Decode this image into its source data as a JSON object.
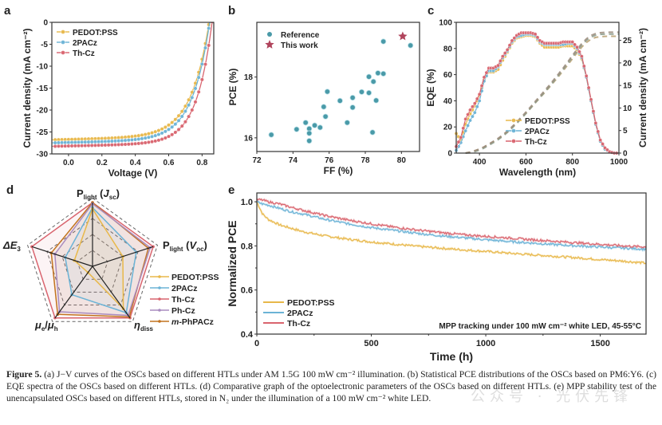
{
  "chart_data": [
    {
      "id": "a",
      "panel_label": "a",
      "type": "line",
      "title": "",
      "xlabel": "Voltage (V)",
      "ylabel": "Current density (mA cm⁻²)",
      "xlim": [
        -0.1,
        0.87
      ],
      "ylim": [
        -30,
        0
      ],
      "xticks": [
        0.0,
        0.2,
        0.4,
        0.6,
        0.8
      ],
      "xtick_labels": [
        "0.0",
        "0.2",
        "0.4",
        "0.6",
        "0.8"
      ],
      "yticks": [
        0,
        -5,
        -10,
        -15,
        -20,
        -25,
        -30
      ],
      "ytick_labels": [
        "0",
        "-5",
        "-10",
        "-15",
        "-20",
        "-25",
        "-30"
      ],
      "legend_position": "top-left",
      "series": [
        {
          "name": "PEDOT:PSS",
          "color": "#e8b84a",
          "jsc": -26.7,
          "voc": 0.845,
          "n": 4.2
        },
        {
          "name": "2PACz",
          "color": "#6bb3d6",
          "jsc": -27.4,
          "voc": 0.848,
          "n": 4.0
        },
        {
          "name": "Th-Cz",
          "color": "#d9646e",
          "jsc": -28.2,
          "voc": 0.862,
          "n": 3.6
        }
      ]
    },
    {
      "id": "b",
      "panel_label": "b",
      "type": "scatter",
      "xlabel": "FF (%)",
      "ylabel": "PCE (%)",
      "xlim": [
        72,
        81
      ],
      "ylim": [
        15.55,
        19.8
      ],
      "xticks": [
        72,
        74,
        76,
        78,
        80
      ],
      "xtick_labels": [
        "72",
        "74",
        "76",
        "78",
        "80"
      ],
      "yticks": [
        16,
        18
      ],
      "ytick_labels": [
        "16",
        "18"
      ],
      "legend_position": "top-left",
      "series": [
        {
          "name": "Reference",
          "color": "#4a9aa8",
          "marker": "circle",
          "points": [
            [
              72.8,
              16.1
            ],
            [
              74.2,
              16.28
            ],
            [
              74.7,
              16.5
            ],
            [
              74.9,
              16.3
            ],
            [
              74.9,
              16.15
            ],
            [
              74.9,
              15.9
            ],
            [
              75.2,
              16.41
            ],
            [
              75.5,
              16.34
            ],
            [
              75.8,
              16.7
            ],
            [
              75.7,
              17.02
            ],
            [
              75.9,
              17.52
            ],
            [
              76.6,
              17.22
            ],
            [
              77.0,
              16.5
            ],
            [
              77.3,
              17.0
            ],
            [
              77.3,
              17.32
            ],
            [
              77.8,
              17.51
            ],
            [
              78.2,
              18.01
            ],
            [
              78.2,
              17.48
            ],
            [
              78.45,
              17.85
            ],
            [
              78.6,
              17.23
            ],
            [
              78.4,
              16.18
            ],
            [
              78.7,
              18.13
            ],
            [
              79.0,
              18.11
            ],
            [
              79.0,
              19.17
            ],
            [
              80.5,
              19.04
            ]
          ]
        },
        {
          "name": "This work",
          "color": "#b0445c",
          "marker": "star",
          "points": [
            [
              80.07,
              19.34
            ]
          ]
        }
      ]
    },
    {
      "id": "c",
      "panel_label": "c",
      "type": "line",
      "xlabel": "Wavelength (nm)",
      "ylabel": "EQE (%)",
      "y2label": "Current density (mA cm⁻²)",
      "xlim": [
        300,
        1000
      ],
      "ylim": [
        0,
        100
      ],
      "y2lim": [
        0,
        29
      ],
      "xticks": [
        400,
        600,
        800,
        1000
      ],
      "xtick_labels": [
        "400",
        "600",
        "800",
        "1000"
      ],
      "yticks": [
        0,
        20,
        40,
        60,
        80,
        100
      ],
      "ytick_labels": [
        "0",
        "20",
        "40",
        "60",
        "80",
        "100"
      ],
      "y2ticks": [
        0,
        5,
        10,
        15,
        20,
        25
      ],
      "y2tick_labels": [
        "0",
        "5",
        "10",
        "15",
        "20",
        "25"
      ],
      "legend_position": "bottom-center",
      "x": [
        300,
        320,
        340,
        360,
        380,
        400,
        420,
        440,
        460,
        480,
        500,
        520,
        540,
        560,
        580,
        600,
        620,
        640,
        660,
        680,
        700,
        720,
        740,
        760,
        780,
        800,
        820,
        840,
        860,
        880,
        900,
        920,
        940,
        960,
        980,
        1000
      ],
      "series": [
        {
          "name": "PEDOT:PSS",
          "color": "#e8b84a",
          "eqe": [
            15,
            10,
            22,
            30,
            36,
            44,
            56,
            62,
            62,
            64,
            71,
            77,
            84,
            88,
            89,
            90,
            90,
            89,
            84,
            81,
            81,
            81,
            81,
            82,
            82,
            82,
            79,
            72,
            58,
            40,
            22,
            9,
            3,
            1,
            0,
            0
          ],
          "jsc_int": 26.2
        },
        {
          "name": "2PACz",
          "color": "#6bb3d6",
          "eqe": [
            2,
            8,
            17,
            25,
            31,
            40,
            55,
            63,
            63,
            66,
            73,
            78,
            85,
            89,
            90,
            91,
            91,
            90,
            85,
            83,
            83,
            83,
            83,
            83,
            84,
            84,
            80,
            73,
            58,
            40,
            22,
            9,
            3,
            1,
            0,
            0
          ],
          "jsc_int": 26.7
        },
        {
          "name": "Th-Cz",
          "color": "#d9646e",
          "eqe": [
            5,
            12,
            26,
            33,
            38,
            45,
            58,
            65,
            65,
            67,
            74,
            79,
            86,
            90,
            92,
            92,
            92,
            91,
            86,
            84,
            84,
            84,
            84,
            85,
            85,
            85,
            81,
            74,
            59,
            41,
            23,
            10,
            4,
            1,
            0,
            0
          ],
          "jsc_int": 27.1
        }
      ]
    },
    {
      "id": "d",
      "panel_label": "d",
      "type": "radar",
      "axes": [
        {
          "main": "P",
          "sub": "light",
          "paren": "J",
          "paren_sub": "sc"
        },
        {
          "main": "P",
          "sub": "light",
          "paren": "V",
          "paren_sub": "oc"
        },
        {
          "main": "η",
          "sub": "diss",
          "paren": "",
          "paren_sub": ""
        },
        {
          "main": "μ",
          "sub": "e",
          "paren": "/μ",
          "paren_sub": "h"
        },
        {
          "main": "ΔE",
          "sub": "3",
          "paren": "",
          "paren_sub": ""
        }
      ],
      "legend_position": "right",
      "series": [
        {
          "name": "PEDOT:PSS",
          "color": "#e8b84a",
          "values": [
            0.9,
            0.5,
            0.82,
            0.12,
            0.3
          ]
        },
        {
          "name": "2PACz",
          "color": "#6bb3d6",
          "values": [
            0.92,
            0.72,
            0.9,
            0.55,
            0.45
          ]
        },
        {
          "name": "Th-Cz",
          "color": "#d9646e",
          "values": [
            1.0,
            1.0,
            1.0,
            1.0,
            1.0
          ]
        },
        {
          "name": "Ph-Cz",
          "color": "#a98bbf",
          "values": [
            0.98,
            0.95,
            0.95,
            0.88,
            0.62
          ]
        },
        {
          "name": "m-PhPACz",
          "color": "#c2731f",
          "values": [
            1.0,
            0.92,
            0.98,
            0.93,
            0.68
          ]
        }
      ]
    },
    {
      "id": "e",
      "panel_label": "e",
      "type": "line",
      "xlabel": "Time (h)",
      "ylabel": "Normalized PCE",
      "xlim": [
        0,
        1700
      ],
      "ylim": [
        0.4,
        1.04
      ],
      "xticks": [
        0,
        500,
        1000,
        1500
      ],
      "xtick_labels": [
        "0",
        "500",
        "1000",
        "1500"
      ],
      "yticks": [
        0.4,
        0.6,
        0.8,
        1.0
      ],
      "ytick_labels": [
        "0.4",
        "0.6",
        "0.8",
        "1.0"
      ],
      "annotation": "MPP tracking under 100 mW cm⁻² white LED, 45-55°C",
      "legend_position": "bottom-left",
      "x": [
        0,
        25,
        50,
        100,
        150,
        200,
        300,
        400,
        500,
        600,
        700,
        800,
        900,
        1000,
        1100,
        1200,
        1300,
        1400,
        1500,
        1600,
        1700
      ],
      "series": [
        {
          "name": "PEDOT:PSS",
          "color": "#e8b84a",
          "values": [
            1.0,
            0.945,
            0.92,
            0.895,
            0.88,
            0.865,
            0.845,
            0.83,
            0.818,
            0.808,
            0.798,
            0.79,
            0.782,
            0.775,
            0.767,
            0.76,
            0.753,
            0.746,
            0.738,
            0.731,
            0.722
          ]
        },
        {
          "name": "2PACz",
          "color": "#6bb3d6",
          "values": [
            1.0,
            0.99,
            0.985,
            0.97,
            0.955,
            0.945,
            0.92,
            0.9,
            0.883,
            0.87,
            0.857,
            0.846,
            0.837,
            0.828,
            0.82,
            0.813,
            0.806,
            0.8,
            0.795,
            0.79,
            0.785
          ]
        },
        {
          "name": "Th-Cz",
          "color": "#d9646e",
          "values": [
            1.01,
            1.008,
            1.0,
            0.99,
            0.975,
            0.962,
            0.937,
            0.917,
            0.9,
            0.885,
            0.872,
            0.861,
            0.851,
            0.843,
            0.836,
            0.828,
            0.821,
            0.814,
            0.807,
            0.8,
            0.795
          ]
        }
      ]
    }
  ],
  "caption": {
    "figure_label": "Figure 5.",
    "text": " (a) J−V curves of the OSCs based on different HTLs under AM 1.5G 100 mW cm⁻² illumination. (b) Statistical PCE distributions of the OSCs based on PM6:Y6. (c) EQE spectra of the OSCs based on different HTLs. (d) Comparative graph of the optoelectronic parameters of the OSCs based on different HTLs. (e) MPP stability test of the unencapsulated OSCs based on different HTLs, stored in N₂ under the illumination of a 100 mW cm⁻² white LED."
  },
  "watermark": "公众号 · 光伏先锋"
}
